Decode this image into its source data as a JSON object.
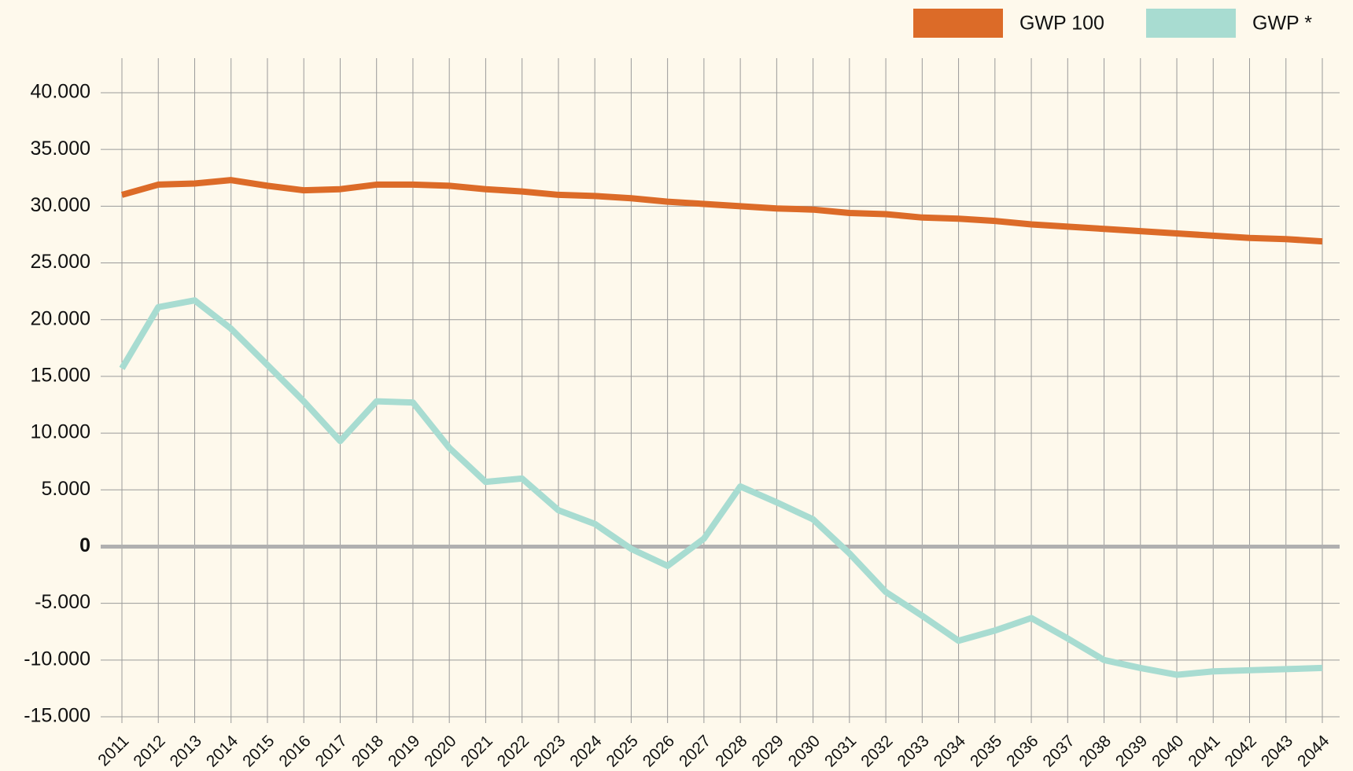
{
  "chart_data": {
    "type": "line",
    "categories": [
      "2011",
      "2012",
      "2013",
      "2014",
      "2015",
      "2016",
      "2017",
      "2018",
      "2019",
      "2020",
      "2021",
      "2022",
      "2023",
      "2024",
      "2025",
      "2026",
      "2027",
      "2028",
      "2029",
      "2030",
      "2031",
      "2032",
      "2033",
      "2034",
      "2035",
      "2036",
      "2037",
      "2038",
      "2039",
      "2040",
      "2041",
      "2042",
      "2043",
      "2044"
    ],
    "series": [
      {
        "name": "GWP 100",
        "color": "#dc6b28",
        "values": [
          31000,
          31900,
          32000,
          32300,
          31800,
          31400,
          31500,
          31900,
          31900,
          31800,
          31500,
          31300,
          31000,
          30900,
          30700,
          30400,
          30200,
          30000,
          29800,
          29700,
          29400,
          29300,
          29000,
          28900,
          28700,
          28400,
          28200,
          28000,
          27800,
          27600,
          27400,
          27200,
          27100,
          26900
        ]
      },
      {
        "name": "GWP *",
        "color": "#a8dcd1",
        "values": [
          15700,
          21100,
          21700,
          19200,
          16000,
          12800,
          9300,
          12800,
          12700,
          8700,
          5700,
          6000,
          3200,
          2000,
          -200,
          -1700,
          700,
          5300,
          3900,
          2400,
          -600,
          -4000,
          -6100,
          -8300,
          -7400,
          -6300,
          -8100,
          -10000,
          -10700,
          -11300,
          -11000,
          -10900,
          -10800,
          -10700
        ]
      }
    ],
    "ylim": [
      -15000,
      40000
    ],
    "yticks": [
      {
        "value": -15000,
        "label": "-15.000"
      },
      {
        "value": -10000,
        "label": "-10.000"
      },
      {
        "value": -5000,
        "label": "-5.000"
      },
      0,
      {
        "value": 5000,
        "label": "5.000"
      },
      {
        "value": 10000,
        "label": "10.000"
      },
      {
        "value": 15000,
        "label": "15.000"
      },
      {
        "value": 20000,
        "label": "20.000"
      },
      {
        "value": 25000,
        "label": "25.000"
      },
      {
        "value": 30000,
        "label": "30.000"
      },
      {
        "value": 35000,
        "label": "35.000"
      },
      {
        "value": 40000,
        "label": "40.000"
      }
    ],
    "grid": true,
    "legend": "top-right"
  }
}
